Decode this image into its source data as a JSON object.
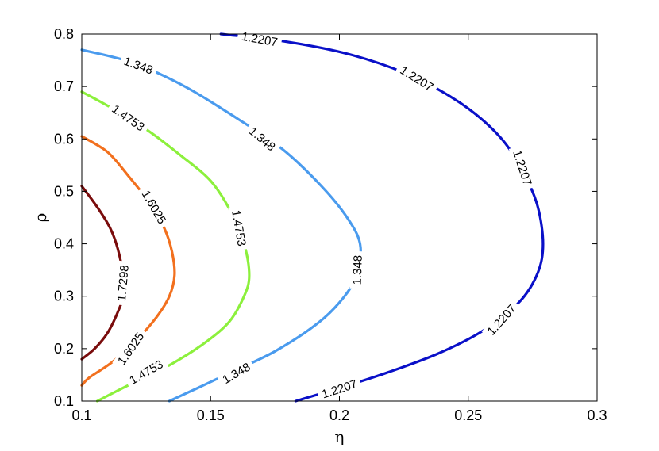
{
  "chart_data": {
    "type": "contour",
    "title": "",
    "xlabel": "η",
    "ylabel": "ρ",
    "xlim": [
      0.1,
      0.3
    ],
    "ylim": [
      0.1,
      0.8
    ],
    "xticks": [
      0.1,
      0.15,
      0.2,
      0.25,
      0.3
    ],
    "yticks": [
      0.1,
      0.2,
      0.3,
      0.4,
      0.5,
      0.6,
      0.7,
      0.8
    ],
    "xtick_labels": [
      "0.1",
      "0.15",
      "0.2",
      "0.25",
      "0.3"
    ],
    "ytick_labels": [
      "0.1",
      "0.2",
      "0.3",
      "0.4",
      "0.5",
      "0.6",
      "0.7",
      "0.8"
    ],
    "grid": false,
    "series": [
      {
        "level": "1.2207",
        "color": "#0a10c8",
        "points": [
          [
            0.154,
            0.8
          ],
          [
            0.18,
            0.785
          ],
          [
            0.205,
            0.76
          ],
          [
            0.228,
            0.72
          ],
          [
            0.248,
            0.665
          ],
          [
            0.263,
            0.6
          ],
          [
            0.272,
            0.53
          ],
          [
            0.277,
            0.47
          ],
          [
            0.279,
            0.4
          ],
          [
            0.277,
            0.345
          ],
          [
            0.27,
            0.29
          ],
          [
            0.256,
            0.235
          ],
          [
            0.238,
            0.19
          ],
          [
            0.216,
            0.15
          ],
          [
            0.198,
            0.122
          ],
          [
            0.183,
            0.1
          ]
        ],
        "labels": [
          {
            "text": "1.2207",
            "x": 0.169,
            "y": 0.79,
            "angle": 10
          },
          {
            "text": "1.2207",
            "x": 0.23,
            "y": 0.715,
            "angle": 32
          },
          {
            "text": "1.2207",
            "x": 0.271,
            "y": 0.545,
            "angle": 72
          },
          {
            "text": "1.2207",
            "x": 0.263,
            "y": 0.255,
            "angle": -48
          },
          {
            "text": "1.2207",
            "x": 0.2,
            "y": 0.123,
            "angle": -18
          }
        ]
      },
      {
        "level": "1.348",
        "color": "#4a9bee",
        "points": [
          [
            0.1,
            0.77
          ],
          [
            0.12,
            0.745
          ],
          [
            0.14,
            0.7
          ],
          [
            0.16,
            0.64
          ],
          [
            0.178,
            0.58
          ],
          [
            0.193,
            0.51
          ],
          [
            0.203,
            0.45
          ],
          [
            0.208,
            0.4
          ],
          [
            0.207,
            0.345
          ],
          [
            0.202,
            0.3
          ],
          [
            0.192,
            0.25
          ],
          [
            0.175,
            0.195
          ],
          [
            0.158,
            0.155
          ],
          [
            0.145,
            0.125
          ],
          [
            0.134,
            0.1
          ]
        ],
        "labels": [
          {
            "text": "1.348",
            "x": 0.122,
            "y": 0.74,
            "angle": 20
          },
          {
            "text": "1.348",
            "x": 0.17,
            "y": 0.6,
            "angle": 40
          },
          {
            "text": "1.348",
            "x": 0.207,
            "y": 0.35,
            "angle": -88
          },
          {
            "text": "1.348",
            "x": 0.16,
            "y": 0.153,
            "angle": -30
          }
        ]
      },
      {
        "level": "1.4753",
        "color": "#8cf03c",
        "points": [
          [
            0.1,
            0.69
          ],
          [
            0.113,
            0.655
          ],
          [
            0.126,
            0.615
          ],
          [
            0.138,
            0.57
          ],
          [
            0.15,
            0.52
          ],
          [
            0.158,
            0.46
          ],
          [
            0.163,
            0.4
          ],
          [
            0.165,
            0.34
          ],
          [
            0.163,
            0.3
          ],
          [
            0.157,
            0.25
          ],
          [
            0.146,
            0.205
          ],
          [
            0.131,
            0.16
          ],
          [
            0.118,
            0.13
          ],
          [
            0.106,
            0.1
          ]
        ],
        "labels": [
          {
            "text": "1.4753",
            "x": 0.118,
            "y": 0.64,
            "angle": 35
          },
          {
            "text": "1.4753",
            "x": 0.161,
            "y": 0.43,
            "angle": 80
          },
          {
            "text": "1.4753",
            "x": 0.125,
            "y": 0.155,
            "angle": -30
          }
        ]
      },
      {
        "level": "1.6025",
        "color": "#f2701e",
        "points": [
          [
            0.1,
            0.605
          ],
          [
            0.11,
            0.575
          ],
          [
            0.118,
            0.53
          ],
          [
            0.126,
            0.48
          ],
          [
            0.132,
            0.43
          ],
          [
            0.135,
            0.385
          ],
          [
            0.136,
            0.34
          ],
          [
            0.134,
            0.3
          ],
          [
            0.129,
            0.26
          ],
          [
            0.121,
            0.215
          ],
          [
            0.112,
            0.175
          ],
          [
            0.103,
            0.145
          ],
          [
            0.1,
            0.13
          ]
        ],
        "labels": [
          {
            "text": "1.6025",
            "x": 0.128,
            "y": 0.47,
            "angle": 60
          },
          {
            "text": "1.6025",
            "x": 0.119,
            "y": 0.2,
            "angle": -55
          }
        ]
      },
      {
        "level": "1.7298",
        "color": "#7a0c0c",
        "points": [
          [
            0.1,
            0.51
          ],
          [
            0.106,
            0.47
          ],
          [
            0.111,
            0.43
          ],
          [
            0.114,
            0.39
          ],
          [
            0.116,
            0.34
          ],
          [
            0.116,
            0.3
          ],
          [
            0.114,
            0.27
          ],
          [
            0.11,
            0.23
          ],
          [
            0.105,
            0.2
          ],
          [
            0.1,
            0.18
          ]
        ],
        "labels": [
          {
            "text": "1.7298",
            "x": 0.116,
            "y": 0.325,
            "angle": -85
          }
        ]
      }
    ]
  }
}
